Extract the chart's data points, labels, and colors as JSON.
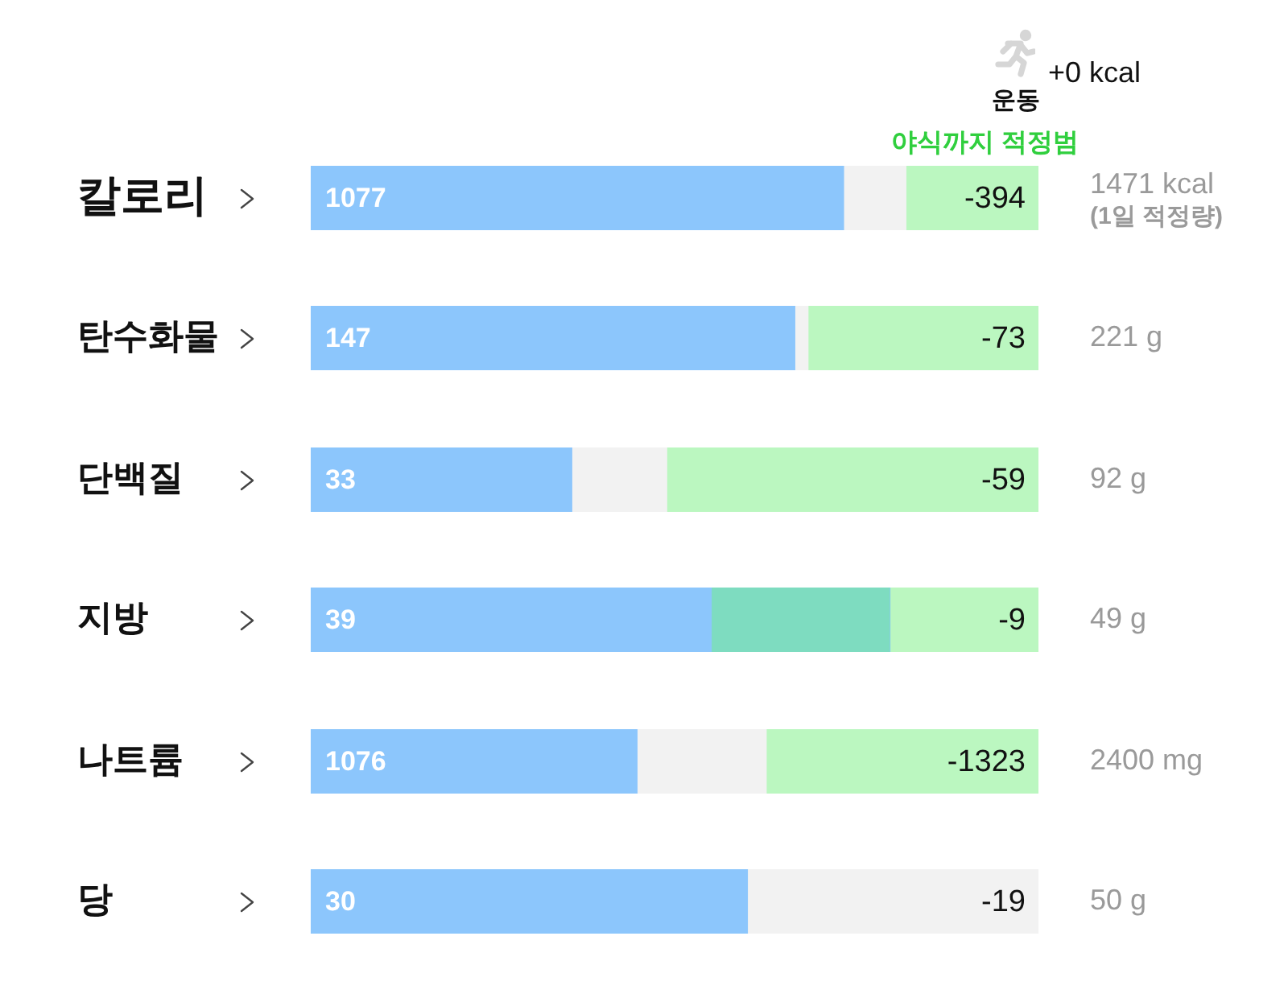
{
  "chart_data": [
    {
      "type": "bar",
      "orientation": "horizontal",
      "stacked": true,
      "tick_labels": "y",
      "legend": false,
      "categories": [
        "칼로리"
      ],
      "xlim": [
        0,
        1471
      ],
      "series": [
        {
          "color": "#8cc6fc",
          "values": [
            1077
          ],
          "value_labels": [
            "1077"
          ]
        },
        {
          "color": "#f2f2f2",
          "values": [
            126
          ]
        },
        {
          "name": "야식까지 적정범",
          "color": "#bbf7c0",
          "values": [
            268
          ]
        }
      ],
      "totals": [
        "1471 kcal"
      ],
      "annotations": [
        {
          "text": "-394",
          "x": 1471
        },
        "(1일 적정량)",
        "+0 kcal",
        "운동"
      ]
    },
    {
      "type": "bar",
      "orientation": "horizontal",
      "stacked": true,
      "tick_labels": "y",
      "legend": false,
      "categories": [
        "탄수화물"
      ],
      "xlim": [
        0,
        221
      ],
      "series": [
        {
          "color": "#8cc6fc",
          "values": [
            147
          ],
          "value_labels": [
            "147"
          ]
        },
        {
          "color": "#f2f2f2",
          "values": [
            4
          ]
        },
        {
          "color": "#bbf7c0",
          "values": [
            70
          ]
        }
      ],
      "totals": [
        "221 g"
      ],
      "annotations": [
        {
          "text": "-73",
          "x": 221
        }
      ]
    },
    {
      "type": "bar",
      "orientation": "horizontal",
      "stacked": true,
      "tick_labels": "y",
      "legend": false,
      "categories": [
        "단백질"
      ],
      "xlim": [
        0,
        92
      ],
      "series": [
        {
          "color": "#8cc6fc",
          "values": [
            33
          ],
          "value_labels": [
            "33"
          ]
        },
        {
          "color": "#f2f2f2",
          "values": [
            12
          ]
        },
        {
          "color": "#bbf7c0",
          "values": [
            47
          ]
        }
      ],
      "totals": [
        "92 g"
      ],
      "annotations": [
        {
          "text": "-59",
          "x": 92
        }
      ]
    },
    {
      "type": "bar",
      "orientation": "horizontal",
      "stacked": true,
      "tick_labels": "y",
      "legend": false,
      "categories": [
        "지방"
      ],
      "xlim": [
        0,
        49
      ],
      "series": [
        {
          "color": "#8cc6fc",
          "values": [
            39
          ],
          "value_labels": [
            "39"
          ]
        },
        {
          "color": "#bbf7c0",
          "values": [
            10
          ]
        }
      ],
      "bands": [
        {
          "axis": "x",
          "from": 27,
          "to": 39,
          "color": "#7edcc0"
        }
      ],
      "totals": [
        "49 g"
      ],
      "annotations": [
        {
          "text": "-9",
          "x": 49
        }
      ]
    },
    {
      "type": "bar",
      "orientation": "horizontal",
      "stacked": true,
      "tick_labels": "y",
      "legend": false,
      "categories": [
        "나트륨"
      ],
      "xlim": [
        0,
        2400
      ],
      "series": [
        {
          "color": "#8cc6fc",
          "values": [
            1076
          ],
          "value_labels": [
            "1076"
          ]
        },
        {
          "color": "#f2f2f2",
          "values": [
            426
          ]
        },
        {
          "color": "#bbf7c0",
          "values": [
            898
          ]
        }
      ],
      "totals": [
        "2400 mg"
      ],
      "annotations": [
        {
          "text": "-1323",
          "x": 2400
        }
      ]
    },
    {
      "type": "bar",
      "orientation": "horizontal",
      "stacked": true,
      "tick_labels": "y",
      "legend": false,
      "categories": [
        "당"
      ],
      "xlim": [
        0,
        50
      ],
      "series": [
        {
          "color": "#8cc6fc",
          "values": [
            30
          ],
          "value_labels": [
            "30"
          ]
        },
        {
          "color": "#f2f2f2",
          "values": [
            20
          ]
        }
      ],
      "totals": [
        "50 g"
      ],
      "annotations": [
        {
          "text": "-19",
          "x": 50
        }
      ]
    }
  ]
}
